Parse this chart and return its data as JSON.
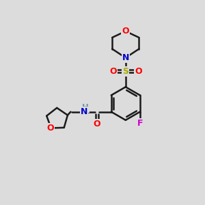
{
  "background_color": "#dcdcdc",
  "bond_color": "#1a1a1a",
  "atom_colors": {
    "O": "#ff0000",
    "N": "#0000cc",
    "F": "#cc00cc",
    "S": "#aaaa00",
    "H": "#6699aa"
  },
  "figsize": [
    3.0,
    3.0
  ],
  "dpi": 100
}
